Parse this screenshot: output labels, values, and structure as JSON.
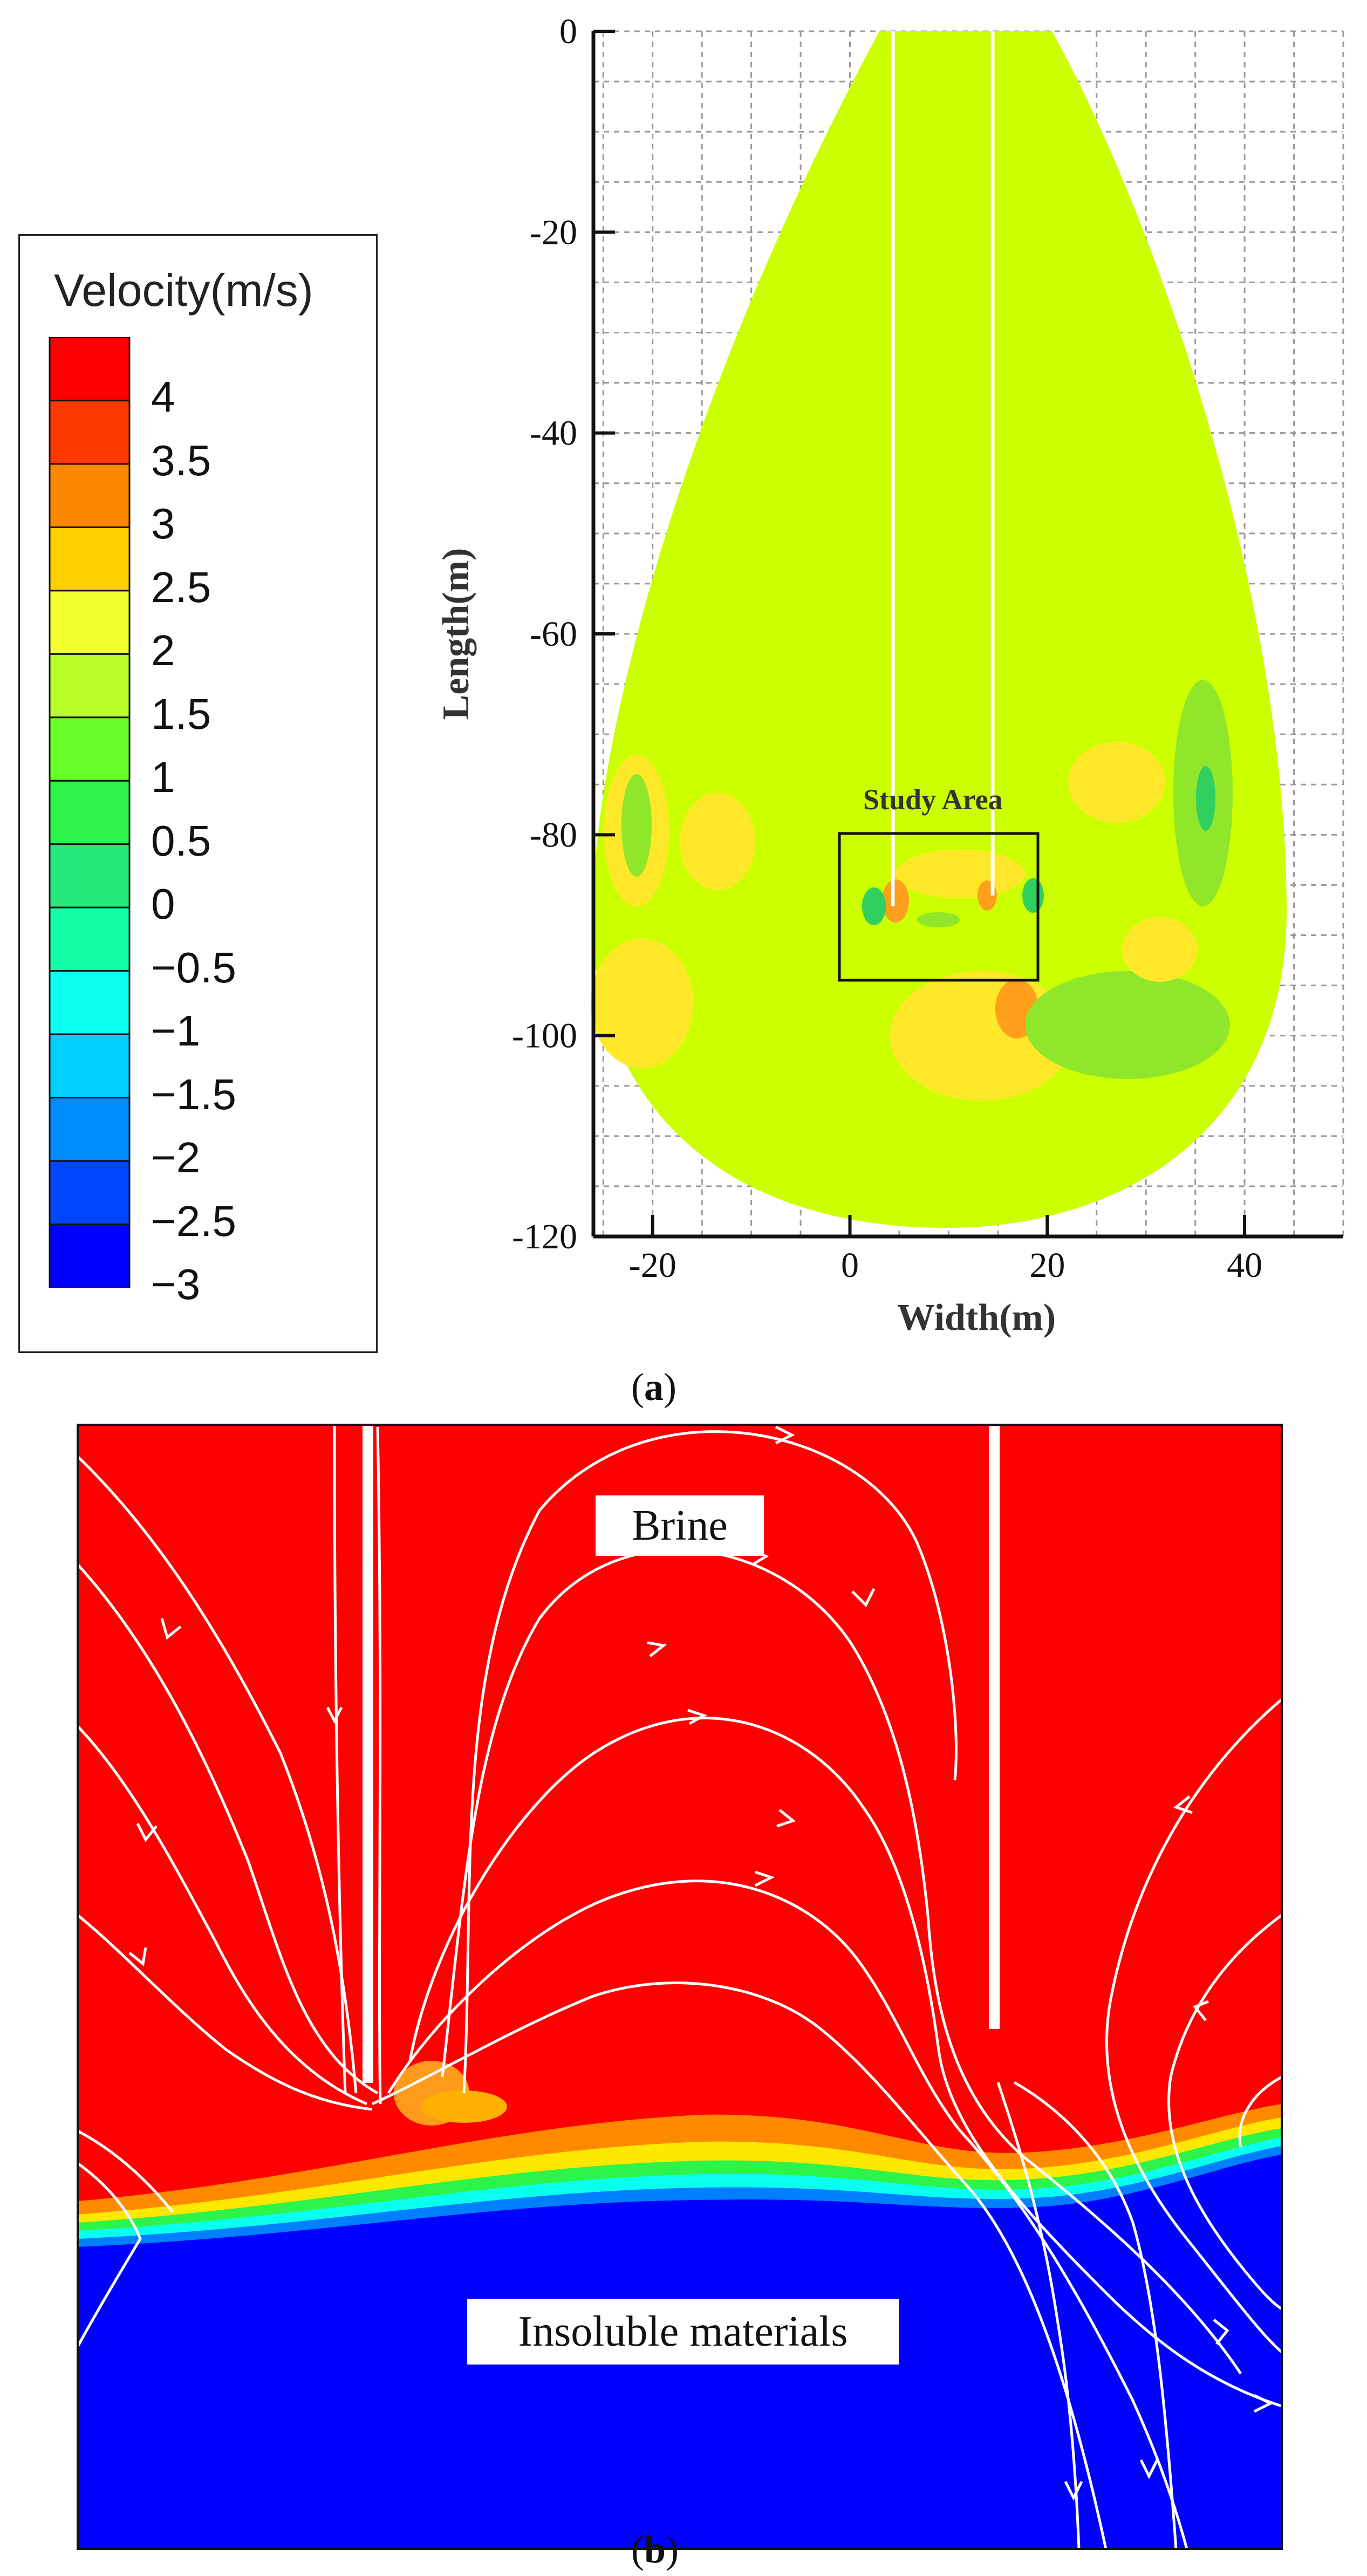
{
  "panel_a": {
    "caption_label": "a",
    "legend": {
      "title": "Velocity(m/s)",
      "colors": [
        "#ff0000",
        "#ff3a00",
        "#ff8600",
        "#ffcf00",
        "#f3ff2c",
        "#b8ff2a",
        "#6aff2a",
        "#2cf44a",
        "#26e97c",
        "#12ffa8",
        "#0bffef",
        "#00cfff",
        "#008bff",
        "#0046ff",
        "#0000ff"
      ],
      "labels": [
        "4",
        "3.5",
        "3",
        "2.5",
        "2",
        "1.5",
        "1",
        "0.5",
        "0",
        "−0.5",
        "−1",
        "−1.5",
        "−2",
        "−2.5",
        "−3"
      ]
    },
    "study_area_label": "Study Area",
    "chart_data": {
      "type": "contour",
      "title": "",
      "xlabel": "Width(m)",
      "ylabel": "Length(m)",
      "xlim": [
        -26,
        50
      ],
      "ylim": [
        -120,
        0
      ],
      "x_ticks": [
        -20,
        0,
        20,
        40
      ],
      "y_ticks": [
        0,
        -20,
        -40,
        -60,
        -80,
        -100,
        -120
      ],
      "study_area_box": {
        "x": [
          0,
          20
        ],
        "y": [
          -95,
          -80
        ]
      },
      "dominant_value_mps": 2,
      "colors": {
        "body": "#ccff00",
        "yellow": "#ffe82a",
        "orange": "#ff9f1a",
        "green": "#8fe62a"
      }
    }
  },
  "panel_b": {
    "caption_label": "b",
    "top_label": "Brine",
    "bottom_label": "Insoluble materials",
    "colors": {
      "top": "#ff0000",
      "bottom": "#0000ff"
    }
  }
}
